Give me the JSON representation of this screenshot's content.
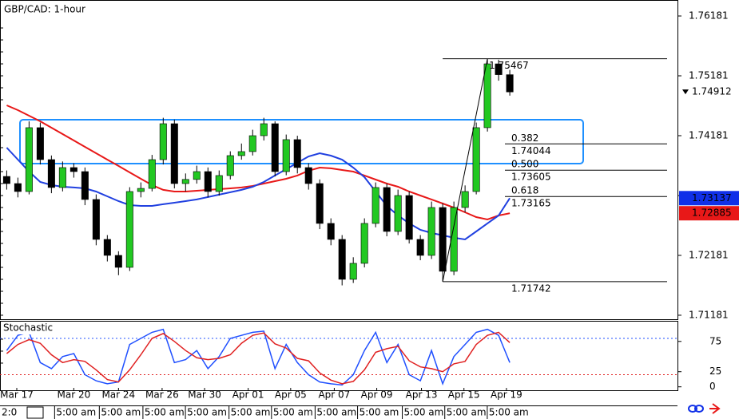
{
  "chart_data": [
    {
      "type": "candlestick",
      "title": "GBP/CAD: 1-hour",
      "open": [
        1.735,
        1.73381,
        1.73248,
        1.74315,
        1.73781,
        1.73315,
        1.73648,
        1.73581,
        1.73115,
        1.72448,
        1.72181,
        1.71981,
        1.73248,
        1.733,
        1.73781,
        1.74381,
        1.73381,
        1.7345,
        1.73581,
        1.73248,
        1.73515,
        1.73848,
        1.73915,
        1.74181,
        1.74381,
        1.73581,
        1.74115,
        1.73648,
        1.73381,
        1.72715,
        1.72448,
        1.71781,
        1.72048,
        1.72715,
        1.73315,
        1.72581,
        1.73181,
        1.72448,
        1.72181,
        1.72981,
        1.71915,
        1.72981,
        1.73248,
        1.74315,
        1.75381,
        1.752
      ],
      "high": [
        1.736,
        1.7348,
        1.7442,
        1.744,
        1.7385,
        1.7375,
        1.7372,
        1.7365,
        1.732,
        1.7252,
        1.7225,
        1.7332,
        1.734,
        1.7386,
        1.7448,
        1.7445,
        1.7355,
        1.7368,
        1.7365,
        1.736,
        1.7392,
        1.7405,
        1.7428,
        1.7448,
        1.7442,
        1.742,
        1.7418,
        1.7372,
        1.7345,
        1.728,
        1.7252,
        1.7215,
        1.728,
        1.734,
        1.7338,
        1.7328,
        1.7325,
        1.7252,
        1.7308,
        1.7305,
        1.7308,
        1.7335,
        1.744,
        1.75467,
        1.7545,
        1.7528
      ],
      "low": [
        1.7328,
        1.7315,
        1.732,
        1.737,
        1.7322,
        1.7325,
        1.7348,
        1.7302,
        1.7235,
        1.7208,
        1.7185,
        1.7192,
        1.7315,
        1.7325,
        1.737,
        1.733,
        1.7325,
        1.7338,
        1.7315,
        1.7318,
        1.7345,
        1.7378,
        1.7385,
        1.741,
        1.735,
        1.7352,
        1.7355,
        1.7328,
        1.7262,
        1.7235,
        1.7168,
        1.7172,
        1.7198,
        1.7265,
        1.725,
        1.7252,
        1.7238,
        1.721,
        1.7212,
        1.71742,
        1.7185,
        1.729,
        1.732,
        1.7425,
        1.751,
        1.7485
      ],
      "close": [
        1.73381,
        1.73248,
        1.74315,
        1.73781,
        1.73315,
        1.73648,
        1.73581,
        1.73115,
        1.72448,
        1.72181,
        1.71981,
        1.73248,
        1.733,
        1.73781,
        1.74381,
        1.73381,
        1.7345,
        1.73581,
        1.73248,
        1.73515,
        1.73848,
        1.73915,
        1.74181,
        1.74381,
        1.73581,
        1.74115,
        1.73648,
        1.73381,
        1.72715,
        1.72448,
        1.71781,
        1.72048,
        1.72715,
        1.73315,
        1.72581,
        1.73181,
        1.72448,
        1.72181,
        1.72981,
        1.71915,
        1.72981,
        1.73248,
        1.74315,
        1.75381,
        1.752,
        1.74912
      ],
      "bull_color": "#22c822",
      "bear_color": "#000000",
      "moving_averages": [
        {
          "color": "#e81818",
          "values": [
            1.74688,
            1.74608,
            1.74515,
            1.74421,
            1.74315,
            1.74208,
            1.74101,
            1.73995,
            1.73888,
            1.73781,
            1.73675,
            1.73568,
            1.73461,
            1.73355,
            1.73275,
            1.73248,
            1.73248,
            1.73261,
            1.73275,
            1.73288,
            1.73301,
            1.73315,
            1.73341,
            1.73381,
            1.73421,
            1.73461,
            1.73515,
            1.73595,
            1.73648,
            1.73635,
            1.73608,
            1.73581,
            1.73515,
            1.73448,
            1.73381,
            1.73328,
            1.73248,
            1.73181,
            1.73115,
            1.73048,
            1.72981,
            1.72901,
            1.72821,
            1.72781,
            1.72848,
            1.72885
          ]
        },
        {
          "color": "#2040e0",
          "values": [
            1.73981,
            1.73781,
            1.73581,
            1.73408,
            1.73355,
            1.73328,
            1.73315,
            1.73301,
            1.73248,
            1.73168,
            1.73088,
            1.73021,
            1.73008,
            1.73008,
            1.73035,
            1.73061,
            1.73088,
            1.73115,
            1.73155,
            1.73195,
            1.73235,
            1.73275,
            1.73328,
            1.73408,
            1.73515,
            1.73621,
            1.73728,
            1.73835,
            1.73888,
            1.73848,
            1.73781,
            1.73648,
            1.73488,
            1.73248,
            1.73008,
            1.72848,
            1.72715,
            1.72608,
            1.72555,
            1.72515,
            1.72475,
            1.72448,
            1.72581,
            1.72715,
            1.72848,
            1.73137
          ]
        }
      ],
      "ylim": [
        1.71114,
        1.76448
      ],
      "yticks": [
        1.76181,
        1.75181,
        1.74181,
        1.73181,
        1.72181,
        1.71181
      ],
      "xlim": [
        -0.6,
        60
      ],
      "xticks": [
        {
          "value": 0.9,
          "label": "Mar 17"
        },
        {
          "value": 6,
          "label": "Mar 20"
        },
        {
          "value": 10,
          "label": "Mar 24"
        },
        {
          "value": 13.9,
          "label": "Mar 26"
        },
        {
          "value": 17.7,
          "label": "Mar 30"
        },
        {
          "value": 21.6,
          "label": "Apr 01"
        },
        {
          "value": 25.4,
          "label": "Apr 05"
        },
        {
          "value": 29.3,
          "label": "Apr 07"
        },
        {
          "value": 33.1,
          "label": "Apr 09"
        },
        {
          "value": 37.1,
          "label": "Apr 13"
        },
        {
          "value": 40.9,
          "label": "Apr 15"
        },
        {
          "value": 44.7,
          "label": "Apr 19"
        }
      ],
      "time_labels": [
        "2:0",
        "5:00 am",
        "5:00 am",
        "5:00 am",
        "5:00 am",
        "5:00 am",
        "5:00 am",
        "5:00 am",
        "5:00 am",
        "5:00 am",
        "5:00 am",
        "5:00 am"
      ],
      "price_tags": [
        {
          "value": 1.74912,
          "color": "#000000",
          "background": "#ffffff"
        },
        {
          "value": 1.73137,
          "color": "#ffffff",
          "background": "#1030e8"
        },
        {
          "value": 1.72885,
          "color": "#ffffff",
          "background": "#e81818"
        }
      ],
      "swing_high": 1.75467,
      "swing_low": 1.71742,
      "fib_levels": [
        {
          "ratio": "0.382",
          "value": 1.74044
        },
        {
          "ratio": "0.500",
          "value": 1.73605
        },
        {
          "ratio": "0.618",
          "value": 1.73165
        }
      ],
      "zone": [
        1.73715,
        1.74448
      ],
      "zone_color": "#1e90ff"
    },
    {
      "type": "line",
      "title": "Stochastic",
      "series": [
        {
          "color": "#2050ff",
          "values": [
            60,
            85,
            90,
            40,
            30,
            50,
            55,
            20,
            10,
            5,
            8,
            70,
            80,
            90,
            95,
            40,
            45,
            60,
            30,
            50,
            80,
            85,
            90,
            92,
            30,
            70,
            40,
            20,
            8,
            5,
            3,
            20,
            60,
            90,
            40,
            70,
            20,
            10,
            60,
            5,
            50,
            70,
            90,
            95,
            85,
            40
          ]
        },
        {
          "color": "#e02020",
          "values": [
            55,
            70,
            78,
            72,
            53,
            40,
            45,
            42,
            28,
            12,
            8,
            28,
            53,
            80,
            88,
            75,
            60,
            48,
            45,
            47,
            53,
            72,
            85,
            89,
            71,
            64,
            47,
            43,
            23,
            11,
            5,
            9,
            28,
            57,
            63,
            67,
            43,
            33,
            30,
            25,
            38,
            42,
            70,
            85,
            90,
            73
          ]
        }
      ],
      "ylim": [
        -7,
        109
      ],
      "yticks": [
        75,
        25,
        0
      ],
      "levels": [
        {
          "value": 80,
          "color": "#2050ff"
        },
        {
          "value": 20,
          "color": "#e02020"
        }
      ]
    }
  ]
}
